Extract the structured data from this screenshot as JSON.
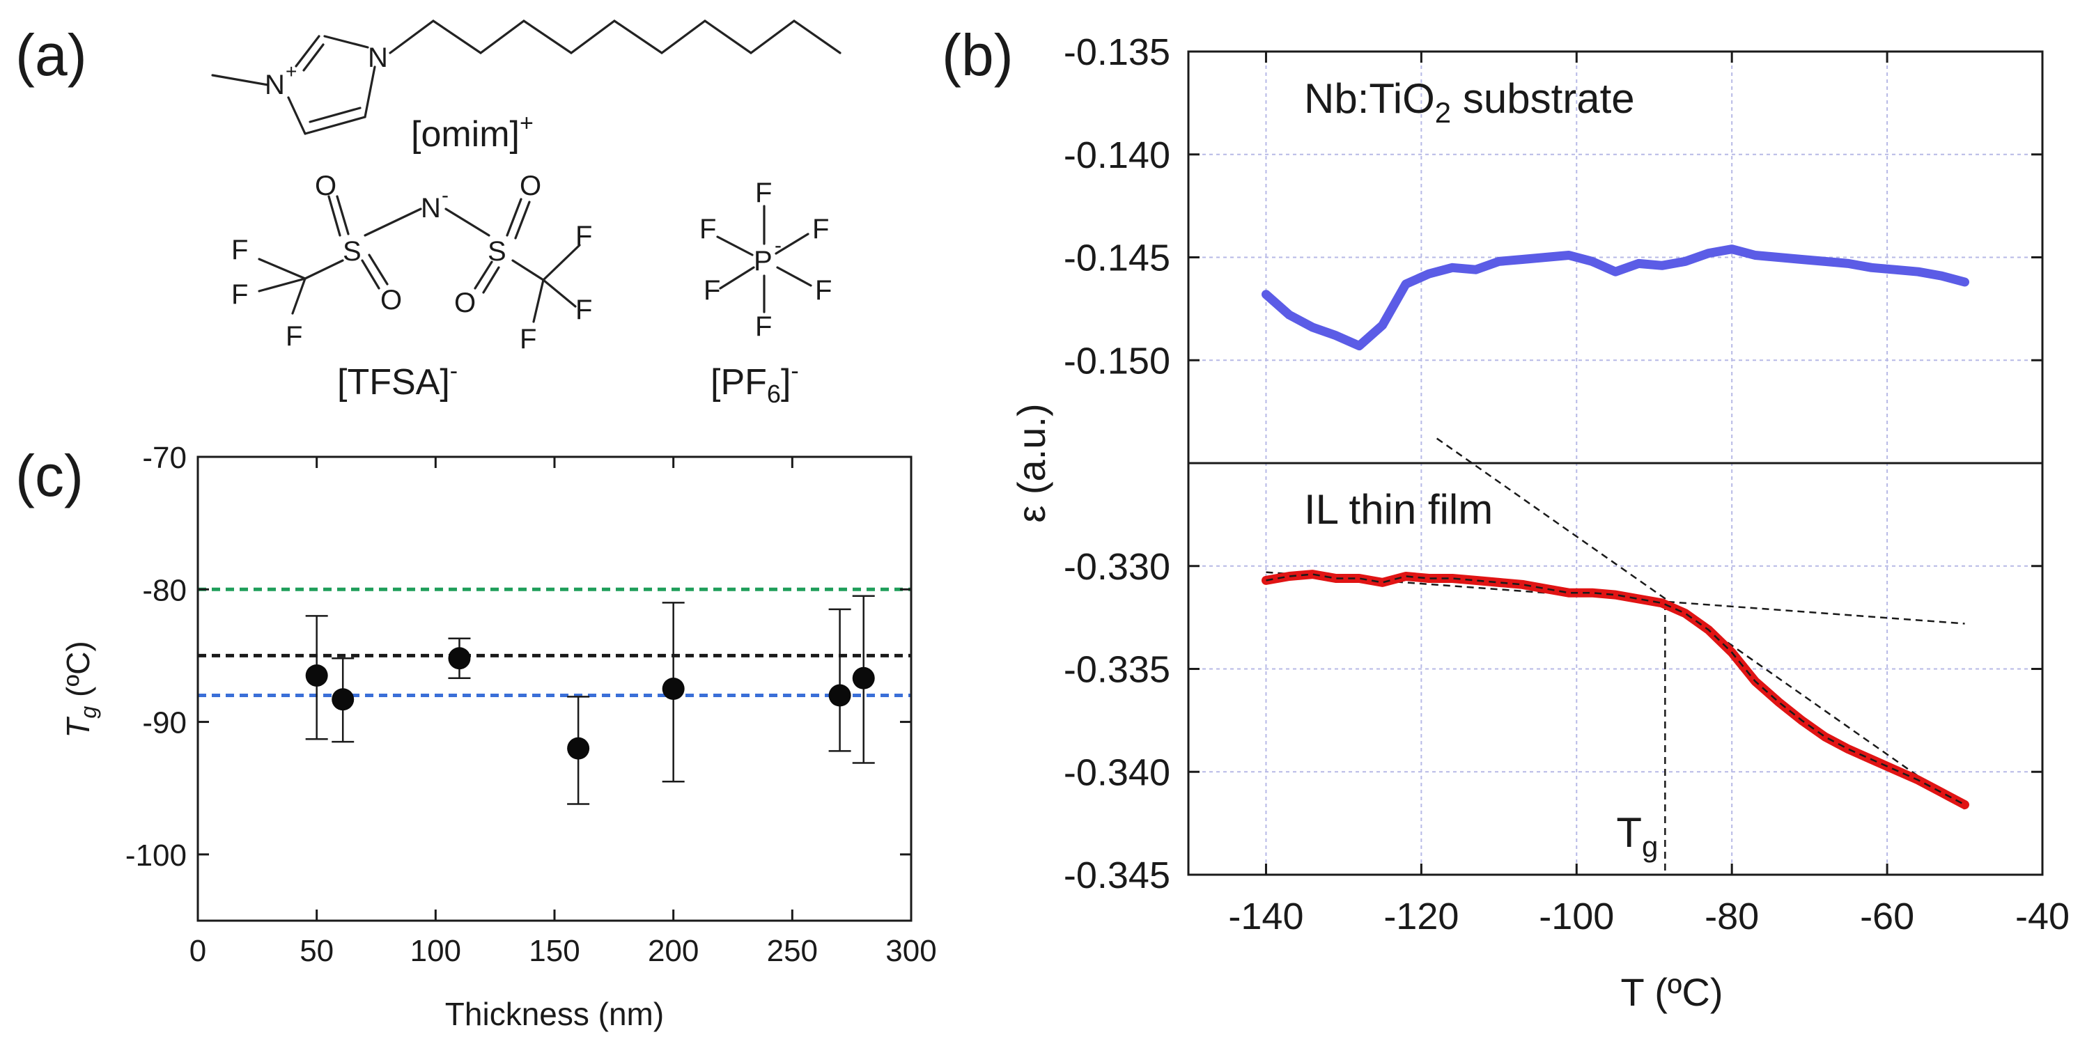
{
  "panels": {
    "a": "(a)",
    "b": "(b)",
    "c": "(c)"
  },
  "panel_a": {
    "cation_label": "[omim]",
    "cation_charge": "+",
    "anion1_label": "[TFSA]",
    "anion1_charge": "-",
    "anion2_label_main": "[PF",
    "anion2_label_sub": "6",
    "anion2_label_end": "]",
    "anion2_charge": "-",
    "atoms": {
      "N": "N",
      "N_plus": "N",
      "plus": "+",
      "minus": "-",
      "S": "S",
      "O": "O",
      "F": "F",
      "P": "P"
    }
  },
  "colors": {
    "substrate": "#5b5ce6",
    "film": "#e01414",
    "fit": "#1a1a1a",
    "green_line": "#1f9e5a",
    "black_line": "#1a1a1a",
    "blue_line": "#3a6fd8",
    "markers": "#0a0a0a"
  },
  "chart_data": [
    {
      "id": "c",
      "type": "scatter",
      "xlabel": "Thickness (nm)",
      "ylabel_main": "T",
      "ylabel_sub": "g",
      "ylabel_unit": " (ºC)",
      "xlim": [
        0,
        300
      ],
      "ylim": [
        -105,
        -70
      ],
      "xticks": [
        0,
        50,
        100,
        150,
        200,
        250,
        300
      ],
      "yticks": [
        -70,
        -80,
        -90,
        -100
      ],
      "reference_lines": [
        {
          "y": -80,
          "color": "green"
        },
        {
          "y": -85,
          "color": "black"
        },
        {
          "y": -88,
          "color": "blue"
        }
      ],
      "points": [
        {
          "x": 50,
          "y": -86.5,
          "err_low": 4.8,
          "err_high": 4.5
        },
        {
          "x": 61,
          "y": -88.3,
          "err_low": 3.2,
          "err_high": 3.1
        },
        {
          "x": 110,
          "y": -85.2,
          "err_low": 1.5,
          "err_high": 1.5
        },
        {
          "x": 160,
          "y": -92.0,
          "err_low": 4.2,
          "err_high": 3.9
        },
        {
          "x": 200,
          "y": -87.5,
          "err_low": 7.0,
          "err_high": 6.5
        },
        {
          "x": 270,
          "y": -88.0,
          "err_low": 4.2,
          "err_high": 6.5
        },
        {
          "x": 280,
          "y": -86.7,
          "err_low": 6.4,
          "err_high": 6.2
        }
      ]
    },
    {
      "id": "b",
      "type": "line",
      "xlabel": "T (ºC)",
      "ylabel": "ε (a.u.)",
      "xlim": [
        -150,
        -40
      ],
      "xticks": [
        -140,
        -120,
        -100,
        -80,
        -60,
        -40
      ],
      "subplots": [
        {
          "name": "substrate",
          "annotation_main": "Nb:TiO",
          "annotation_sub": "2",
          "annotation_end": " substrate",
          "ylim": [
            -0.155,
            -0.135
          ],
          "yticks": [
            "-0.135",
            "-0.140",
            "-0.145",
            "-0.150"
          ],
          "ytick_values": [
            -0.135,
            -0.14,
            -0.145,
            -0.15
          ],
          "series": [
            {
              "name": "substrate",
              "x": [
                -140,
                -137,
                -134,
                -131,
                -128,
                -125,
                -122,
                -119,
                -116,
                -113,
                -110,
                -107,
                -104,
                -101,
                -98,
                -95,
                -92,
                -89,
                -86,
                -83,
                -80,
                -77,
                -74,
                -71,
                -68,
                -65,
                -62,
                -59,
                -56,
                -53,
                -50
              ],
              "y": [
                -0.1468,
                -0.1478,
                -0.1484,
                -0.1488,
                -0.1493,
                -0.1483,
                -0.1463,
                -0.1458,
                -0.1455,
                -0.1456,
                -0.1452,
                -0.1451,
                -0.145,
                -0.1449,
                -0.1452,
                -0.1457,
                -0.1453,
                -0.1454,
                -0.1452,
                -0.1448,
                -0.1446,
                -0.1449,
                -0.145,
                -0.1451,
                -0.1452,
                -0.1453,
                -0.1455,
                -0.1456,
                -0.1457,
                -0.1459,
                -0.1462
              ]
            }
          ]
        },
        {
          "name": "film",
          "annotation": "IL thin film",
          "ylim": [
            -0.345,
            -0.325
          ],
          "yticks": [
            "-0.330",
            "-0.335",
            "-0.340",
            "-0.345"
          ],
          "ytick_values": [
            -0.33,
            -0.335,
            -0.34,
            -0.345
          ],
          "series": [
            {
              "name": "film",
              "x": [
                -140,
                -137,
                -134,
                -131,
                -128,
                -125,
                -122,
                -119,
                -116,
                -113,
                -110,
                -107,
                -104,
                -101,
                -98,
                -95,
                -92,
                -89,
                -86,
                -83,
                -80,
                -77,
                -74,
                -71,
                -68,
                -65,
                -62,
                -59,
                -56,
                -53,
                -50
              ],
              "y": [
                -0.3307,
                -0.3305,
                -0.3304,
                -0.3306,
                -0.3306,
                -0.3308,
                -0.3305,
                -0.3306,
                -0.3306,
                -0.3307,
                -0.3308,
                -0.3309,
                -0.3311,
                -0.3313,
                -0.3313,
                -0.3314,
                -0.3316,
                -0.3318,
                -0.3323,
                -0.3331,
                -0.3342,
                -0.3356,
                -0.3366,
                -0.3375,
                -0.3383,
                -0.3389,
                -0.3394,
                -0.3399,
                -0.3404,
                -0.341,
                -0.3416
              ]
            }
          ],
          "fit_lines": [
            {
              "x1": -140,
              "y1": -0.3303,
              "x2": -50,
              "y2": -0.3328
            },
            {
              "x1": -118,
              "y1": -0.3238,
              "x2": -50,
              "y2": -0.3418
            }
          ],
          "tg_marker": {
            "x": -88.6,
            "label_main": "T",
            "label_sub": "g"
          }
        }
      ]
    }
  ]
}
